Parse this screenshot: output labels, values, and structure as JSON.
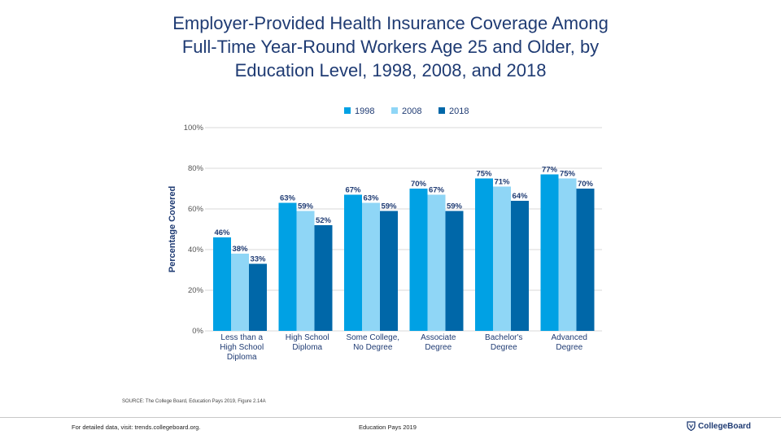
{
  "title_lines": [
    "Employer-Provided Health Insurance Coverage Among",
    "Full-Time Year-Round Workers Age 25 and Older, by",
    "Education Level, 1998, 2008, and 2018"
  ],
  "chart_data": {
    "type": "bar",
    "title": "Employer-Provided Health Insurance Coverage Among Full-Time Year-Round Workers Age 25 and Older, by Education Level, 1998, 2008, and 2018",
    "ylabel": "Percentage Covered",
    "xlabel": "",
    "ylim": [
      0,
      100
    ],
    "yticks": [
      "0%",
      "20%",
      "40%",
      "60%",
      "80%",
      "100%"
    ],
    "ytick_values": [
      0,
      20,
      40,
      60,
      80,
      100
    ],
    "grid": true,
    "legend_position": "top",
    "categories": [
      [
        "Less than a",
        "High School",
        "Diploma"
      ],
      [
        "High School",
        "Diploma"
      ],
      [
        "Some College,",
        "No Degree"
      ],
      [
        "Associate",
        "Degree"
      ],
      [
        "Bachelor's",
        "Degree"
      ],
      [
        "Advanced",
        "Degree"
      ]
    ],
    "series": [
      {
        "name": "1998",
        "color": "#00a1e4",
        "values": [
          46,
          63,
          67,
          70,
          75,
          77
        ],
        "labels": [
          "46%",
          "63%",
          "67%",
          "70%",
          "75%",
          "77%"
        ]
      },
      {
        "name": "2008",
        "color": "#8fd6f6",
        "values": [
          38,
          59,
          63,
          67,
          71,
          75
        ],
        "labels": [
          "38%",
          "59%",
          "63%",
          "67%",
          "71%",
          "75%"
        ]
      },
      {
        "name": "2018",
        "color": "#0067a8",
        "values": [
          33,
          52,
          59,
          59,
          64,
          70
        ],
        "labels": [
          "33%",
          "52%",
          "59%",
          "59%",
          "64%",
          "70%"
        ]
      }
    ]
  },
  "source": "SOURCE: The College Board, Education Pays 2019, Figure 2.14A",
  "footer": {
    "left": "For detailed data, visit: trends.collegeboard.org.",
    "middle": "Education Pays 2019",
    "brand": "CollegeBoard"
  },
  "colors": {
    "text": "#1f3b73",
    "grid": "#d9d9d9"
  }
}
